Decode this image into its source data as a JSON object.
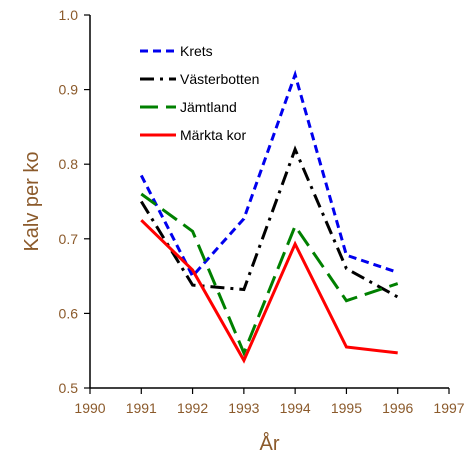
{
  "chart_data": {
    "type": "line",
    "xlabel": "År",
    "ylabel": "Kalv per ko",
    "xlim": [
      1990,
      1997
    ],
    "ylim": [
      0.5,
      1.0
    ],
    "xticks": [
      "1990",
      "1991",
      "1992",
      "1993",
      "1994",
      "1995",
      "1996",
      "1997"
    ],
    "yticks": [
      "0.5",
      "0.6",
      "0.7",
      "0.8",
      "0.9",
      "1.0"
    ],
    "grid": false,
    "legend_position": "top-left",
    "label_color": "#8B5A2B",
    "series": [
      {
        "name": "Krets",
        "color": "#0000EE",
        "dash": "dashed",
        "x": [
          1991,
          1992,
          1993,
          1994,
          1995,
          1996
        ],
        "values": [
          0.785,
          0.65,
          0.727,
          0.92,
          0.678,
          0.655
        ]
      },
      {
        "name": "Västerbotten",
        "color": "#000000",
        "dash": "dashdot",
        "x": [
          1991,
          1992,
          1993,
          1994,
          1995,
          1996
        ],
        "values": [
          0.75,
          0.638,
          0.632,
          0.82,
          0.66,
          0.622
        ]
      },
      {
        "name": "Jämtland",
        "color": "#008000",
        "dash": "longdash",
        "x": [
          1991,
          1992,
          1993,
          1994,
          1995,
          1996
        ],
        "values": [
          0.76,
          0.71,
          0.547,
          0.717,
          0.617,
          0.64
        ]
      },
      {
        "name": "Märkta kor",
        "color": "#FF0000",
        "dash": "solid",
        "x": [
          1991,
          1992,
          1993,
          1994,
          1995,
          1996
        ],
        "values": [
          0.725,
          0.658,
          0.537,
          0.693,
          0.555,
          0.547
        ]
      }
    ]
  }
}
